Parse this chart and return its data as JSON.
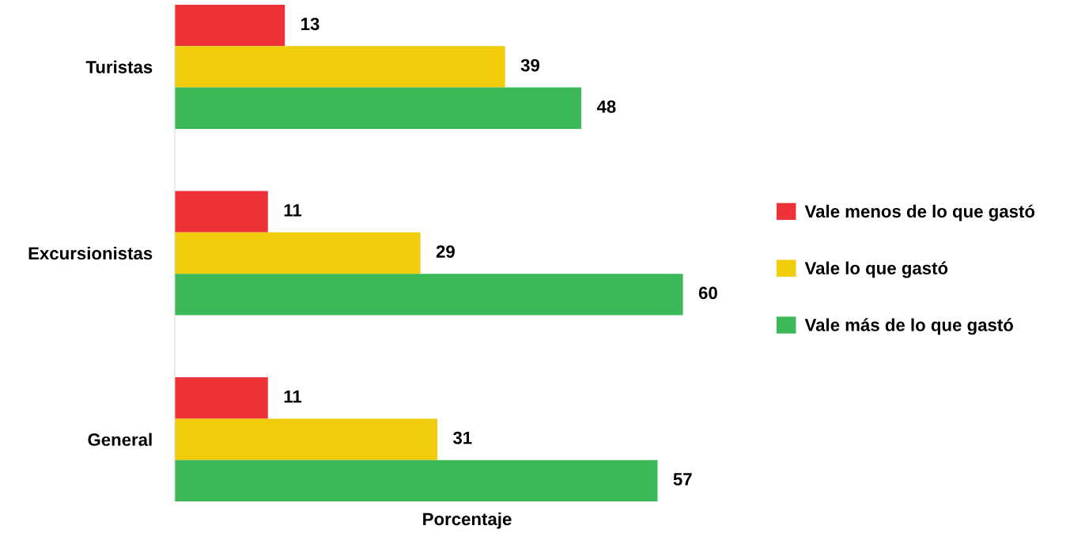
{
  "chart_data": {
    "type": "bar",
    "orientation": "horizontal",
    "xlabel": "Porcentaje",
    "categories": [
      "Turistas",
      "Excursionistas",
      "General"
    ],
    "series": [
      {
        "name": "Vale menos de lo que gastó",
        "color": "#ee3338",
        "values": [
          13,
          11,
          11
        ]
      },
      {
        "name": "Vale lo que gastó",
        "color": "#f0cc0a",
        "values": [
          39,
          29,
          31
        ]
      },
      {
        "name": "Vale más de lo que gastó",
        "color": "#3bb857",
        "values": [
          48,
          60,
          57
        ]
      }
    ],
    "data_labels": true,
    "legend": "right",
    "grid": false
  }
}
